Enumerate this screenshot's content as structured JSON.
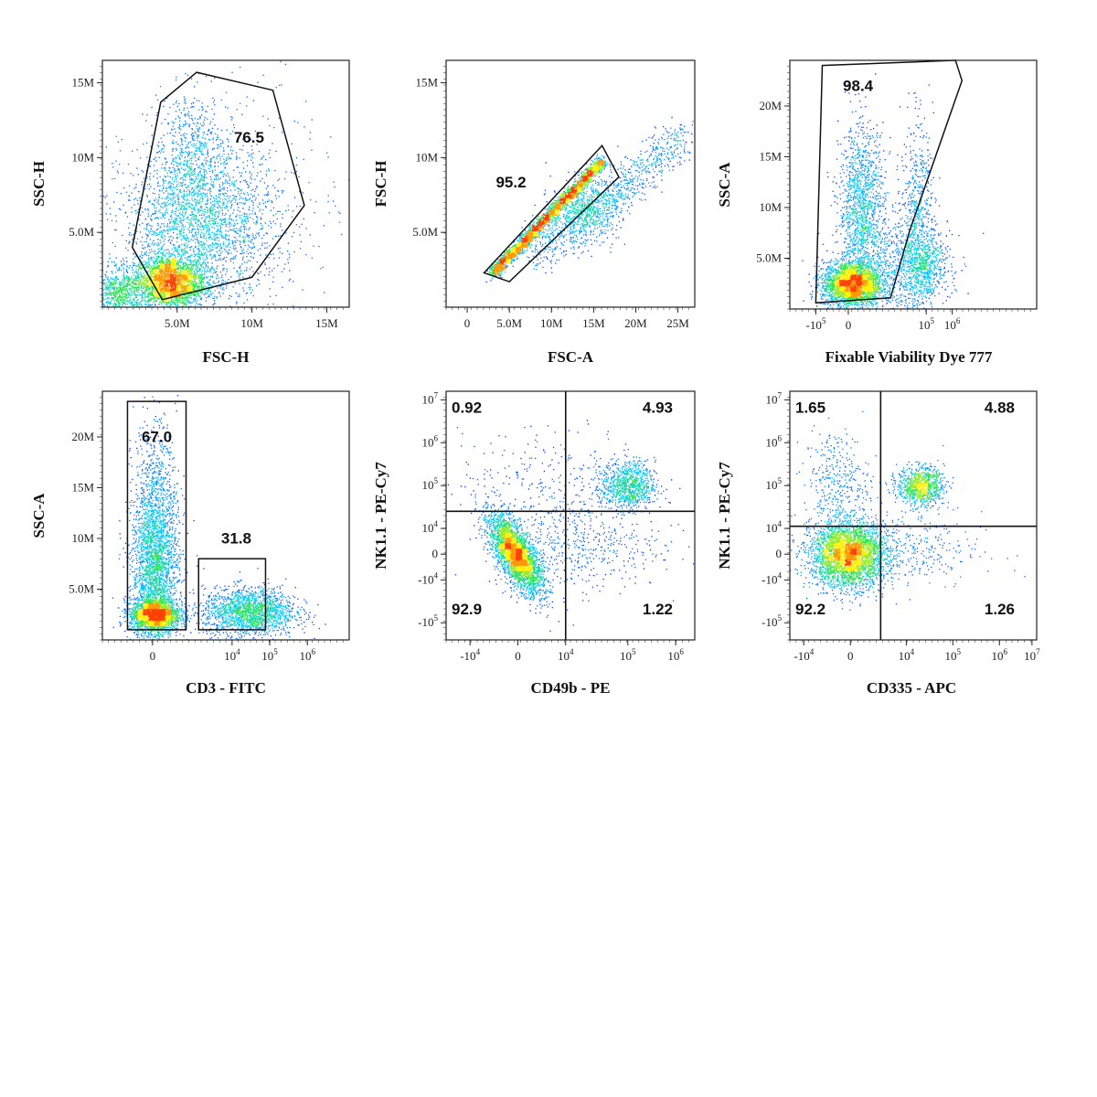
{
  "chart_data": [
    {
      "type": "scatter",
      "xlabel": "FSC-H",
      "ylabel": "SSC-H",
      "x_ticks": [
        {
          "v": 5,
          "t": "5.0M"
        },
        {
          "v": 10,
          "t": "10M"
        },
        {
          "v": 15,
          "t": "15M"
        }
      ],
      "y_ticks": [
        {
          "v": 5,
          "t": "5.0M"
        },
        {
          "v": 10,
          "t": "10M"
        },
        {
          "v": 15,
          "t": "15M"
        }
      ],
      "xlim": [
        0,
        16.5
      ],
      "ylim": [
        0,
        16.5
      ],
      "clusters": [
        {
          "x": 4.5,
          "y": 1.7,
          "sx": 1.2,
          "sy": 0.9,
          "n": 2600
        },
        {
          "x": 6.5,
          "y": 5.5,
          "sx": 2.6,
          "sy": 2.6,
          "n": 2400
        },
        {
          "x": 6.0,
          "y": 10.5,
          "sx": 1.0,
          "sy": 2.0,
          "n": 500
        },
        {
          "x": 1.0,
          "y": 1.0,
          "sx": 1.0,
          "sy": 0.8,
          "n": 700
        },
        {
          "x": 9.0,
          "y": 8.0,
          "sx": 3.5,
          "sy": 4.0,
          "n": 300
        }
      ],
      "gates": [
        {
          "label": "76.5",
          "shape": "polygon",
          "points": [
            [
              4.0,
              0.5
            ],
            [
              2.0,
              4.0
            ],
            [
              3.9,
              13.7
            ],
            [
              6.3,
              15.7
            ],
            [
              11.4,
              14.5
            ],
            [
              13.5,
              6.8
            ],
            [
              10.0,
              2.0
            ]
          ],
          "label_at": [
            9.8,
            11.0
          ]
        }
      ]
    },
    {
      "type": "scatter",
      "xlabel": "FSC-A",
      "ylabel": "FSC-H",
      "x_ticks": [
        {
          "v": 0,
          "t": "0"
        },
        {
          "v": 5,
          "t": "5.0M"
        },
        {
          "v": 10,
          "t": "10M"
        },
        {
          "v": 15,
          "t": "15M"
        },
        {
          "v": 20,
          "t": "20M"
        },
        {
          "v": 25,
          "t": "25M"
        }
      ],
      "y_ticks": [
        {
          "v": 5,
          "t": "5.0M"
        },
        {
          "v": 10,
          "t": "10M"
        },
        {
          "v": 15,
          "t": "15M"
        }
      ],
      "xlim": [
        -2.5,
        27
      ],
      "ylim": [
        0,
        16.5
      ],
      "clusters": [
        {
          "diag": true,
          "x0": 3,
          "y0": 2.3,
          "x1": 16,
          "y1": 9.8,
          "spread": 0.35,
          "n": 2600
        },
        {
          "diag": true,
          "x0": 8,
          "y0": 3.5,
          "x1": 26,
          "y1": 11.5,
          "spread": 1.2,
          "n": 900
        },
        {
          "x": 14.0,
          "y": 6.5,
          "sx": 2.0,
          "sy": 1.0,
          "n": 600
        }
      ],
      "gates": [
        {
          "label": "95.2",
          "shape": "polygon",
          "points": [
            [
              2.0,
              2.3
            ],
            [
              5.0,
              1.7
            ],
            [
              18.0,
              8.7
            ],
            [
              16.0,
              10.8
            ]
          ],
          "label_at": [
            5.2,
            8.0
          ]
        }
      ]
    },
    {
      "type": "scatter",
      "xlabel": "Fixable Viability Dye 777",
      "ylabel": "SSC-A",
      "x_ticks": [
        {
          "v": -1,
          "b": "-10",
          "e": "5"
        },
        {
          "v": 0,
          "t": "0"
        },
        {
          "v": 2.4,
          "b": "10",
          "e": "5"
        },
        {
          "v": 3.2,
          "b": "10",
          "e": "6"
        }
      ],
      "y_ticks": [
        {
          "v": 5,
          "t": "5.0M"
        },
        {
          "v": 10,
          "t": "10M"
        },
        {
          "v": 15,
          "t": "15M"
        },
        {
          "v": 20,
          "t": "20M"
        }
      ],
      "xlim": [
        -1.8,
        5.8
      ],
      "ylim": [
        0,
        24.5
      ],
      "clusters": [
        {
          "x": 0.1,
          "y": 2.5,
          "sx": 0.45,
          "sy": 1.1,
          "n": 2600
        },
        {
          "x": 0.4,
          "y": 10.0,
          "sx": 0.35,
          "sy": 4.0,
          "n": 1300
        },
        {
          "x": 1.5,
          "y": 4.5,
          "sx": 0.8,
          "sy": 2.5,
          "n": 800
        },
        {
          "x": 2.1,
          "y": 8.5,
          "sx": 0.25,
          "sy": 5.0,
          "n": 700
        },
        {
          "x": 2.4,
          "y": 4.0,
          "sx": 0.3,
          "sy": 1.6,
          "n": 400
        }
      ],
      "gates": [
        {
          "label": "98.4",
          "shape": "polygon",
          "points": [
            [
              -1.0,
              0.6
            ],
            [
              -0.8,
              24.0
            ],
            [
              3.3,
              24.5
            ],
            [
              3.5,
              22.5
            ],
            [
              1.9,
              7.8
            ],
            [
              1.3,
              1.1
            ]
          ],
          "label_at": [
            0.3,
            21.5
          ]
        }
      ]
    },
    {
      "type": "scatter",
      "xlabel": "CD3 - FITC",
      "ylabel": "SSC-A",
      "x_ticks": [
        {
          "v": 0,
          "t": "0"
        },
        {
          "v": 1.9,
          "b": "10",
          "e": "4"
        },
        {
          "v": 2.8,
          "b": "10",
          "e": "5"
        },
        {
          "v": 3.7,
          "b": "10",
          "e": "6"
        }
      ],
      "y_ticks": [
        {
          "v": 5,
          "t": "5.0M"
        },
        {
          "v": 10,
          "t": "10M"
        },
        {
          "v": 15,
          "t": "15M"
        },
        {
          "v": 20,
          "t": "20M"
        }
      ],
      "xlim": [
        -1.2,
        4.7
      ],
      "ylim": [
        0,
        24.5
      ],
      "clusters": [
        {
          "x": 0.05,
          "y": 2.5,
          "sx": 0.3,
          "sy": 0.8,
          "n": 2000
        },
        {
          "x": 0.05,
          "y": 7.0,
          "sx": 0.28,
          "sy": 4.0,
          "n": 2400
        },
        {
          "x": 0.05,
          "y": 15.0,
          "sx": 0.25,
          "sy": 3.5,
          "n": 500
        },
        {
          "x": 2.3,
          "y": 2.8,
          "sx": 0.55,
          "sy": 1.2,
          "n": 1800
        }
      ],
      "gates": [
        {
          "label": "67.0",
          "shape": "rect",
          "points": [
            [
              -0.6,
              1.0
            ],
            [
              0.8,
              23.5
            ]
          ],
          "label_at": [
            0.1,
            19.5
          ]
        },
        {
          "label": "31.8",
          "shape": "rect",
          "points": [
            [
              1.1,
              1.0
            ],
            [
              2.7,
              8.0
            ]
          ],
          "label_at": [
            2.0,
            9.5
          ]
        }
      ]
    },
    {
      "type": "scatter",
      "xlabel": "NK1.1 - PE-Cy7",
      "ylabel": "NK1.1 - PE-Cy7",
      "x_name": "CD49b - PE",
      "x_ticks": [
        {
          "v": -1,
          "b": "-10",
          "e": "4"
        },
        {
          "v": 0,
          "t": "0"
        },
        {
          "v": 1,
          "b": "10",
          "e": "4"
        },
        {
          "v": 2.3,
          "b": "10",
          "e": "5"
        },
        {
          "v": 3.3,
          "b": "10",
          "e": "6"
        }
      ],
      "y_ticks": [
        {
          "v": -1.6,
          "b": "-10",
          "e": "5"
        },
        {
          "v": -0.6,
          "b": "-10",
          "e": "4"
        },
        {
          "v": 0,
          "t": "0"
        },
        {
          "v": 0.6,
          "b": "10",
          "e": "4"
        },
        {
          "v": 1.6,
          "b": "10",
          "e": "5"
        },
        {
          "v": 2.6,
          "b": "10",
          "e": "6"
        },
        {
          "v": 3.6,
          "b": "10",
          "e": "7"
        }
      ],
      "xlim": [
        -1.5,
        3.7
      ],
      "ylim": [
        -2.0,
        3.8
      ],
      "clusters": [
        {
          "x": -0.05,
          "y": 0.0,
          "sx": 0.28,
          "sy": 0.45,
          "n": 3000,
          "rho": -0.7
        },
        {
          "x": 2.3,
          "y": 1.6,
          "sx": 0.28,
          "sy": 0.28,
          "n": 900
        },
        {
          "x": 1.2,
          "y": 0.2,
          "sx": 0.9,
          "sy": 0.5,
          "n": 500
        },
        {
          "x": 0.8,
          "y": 1.7,
          "sx": 1.0,
          "sy": 0.6,
          "n": 300
        }
      ],
      "quadrant": {
        "x": 1.0,
        "y": 1.0
      },
      "gates": [
        {
          "label": "0.92",
          "shape": "text",
          "label_at": [
            -1.3,
            3.3
          ]
        },
        {
          "label": "4.93",
          "shape": "text",
          "label_at": [
            2.7,
            3.3
          ]
        },
        {
          "label": "92.9",
          "shape": "text",
          "label_at": [
            -1.3,
            -1.4
          ]
        },
        {
          "label": "1.22",
          "shape": "text",
          "label_at": [
            2.7,
            -1.4
          ]
        }
      ]
    },
    {
      "type": "scatter",
      "xlabel": "CD335 - APC",
      "ylabel": "NK1.1 - PE-Cy7",
      "x_ticks": [
        {
          "v": -1,
          "b": "-10",
          "e": "4"
        },
        {
          "v": 0,
          "t": "0"
        },
        {
          "v": 1.2,
          "b": "10",
          "e": "4"
        },
        {
          "v": 2.2,
          "b": "10",
          "e": "5"
        },
        {
          "v": 3.2,
          "b": "10",
          "e": "6"
        },
        {
          "v": 3.9,
          "b": "10",
          "e": "7"
        }
      ],
      "y_ticks": [
        {
          "v": -1.6,
          "b": "-10",
          "e": "5"
        },
        {
          "v": -0.6,
          "b": "-10",
          "e": "4"
        },
        {
          "v": 0,
          "t": "0"
        },
        {
          "v": 0.6,
          "b": "10",
          "e": "4"
        },
        {
          "v": 1.6,
          "b": "10",
          "e": "5"
        },
        {
          "v": 2.6,
          "b": "10",
          "e": "6"
        },
        {
          "v": 3.6,
          "b": "10",
          "e": "7"
        }
      ],
      "xlim": [
        -1.3,
        4.0
      ],
      "ylim": [
        -2.0,
        3.8
      ],
      "clusters": [
        {
          "x": -0.05,
          "y": 0.0,
          "sx": 0.4,
          "sy": 0.38,
          "n": 3200
        },
        {
          "x": 1.5,
          "y": 1.6,
          "sx": 0.25,
          "sy": 0.22,
          "n": 900
        },
        {
          "x": 1.0,
          "y": 0.1,
          "sx": 0.9,
          "sy": 0.45,
          "n": 400
        },
        {
          "x": -0.3,
          "y": 1.7,
          "sx": 0.35,
          "sy": 0.6,
          "n": 350
        }
      ],
      "quadrant": {
        "x": 0.65,
        "y": 0.65
      },
      "gates": [
        {
          "label": "1.65",
          "shape": "text",
          "label_at": [
            -1.15,
            3.3
          ]
        },
        {
          "label": "4.88",
          "shape": "text",
          "label_at": [
            3.05,
            3.3
          ]
        },
        {
          "label": "92.2",
          "shape": "text",
          "label_at": [
            -1.15,
            -1.4
          ]
        },
        {
          "label": "1.26",
          "shape": "text",
          "label_at": [
            3.05,
            -1.4
          ]
        }
      ]
    }
  ]
}
